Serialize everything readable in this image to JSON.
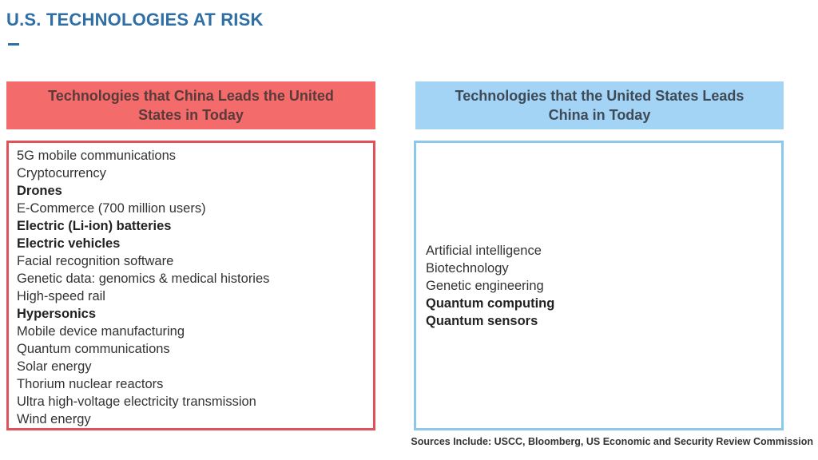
{
  "page": {
    "title": "U.S. TECHNOLOGIES AT RISK",
    "sources": "Sources Include: USCC, Bloomberg, US Economic and Security Review Commission"
  },
  "china_leads": {
    "header": "Technologies that China Leads the United States in Today",
    "items": [
      {
        "text": "5G mobile communications",
        "bold": false
      },
      {
        "text": "Cryptocurrency",
        "bold": false
      },
      {
        "text": "Drones",
        "bold": true
      },
      {
        "text": "E-Commerce (700 million users)",
        "bold": false
      },
      {
        "text": "Electric (Li-ion) batteries",
        "bold": true
      },
      {
        "text": "Electric vehicles",
        "bold": true
      },
      {
        "text": "Facial recognition software",
        "bold": false
      },
      {
        "text": "Genetic data: genomics & medical histories",
        "bold": false
      },
      {
        "text": "High-speed rail",
        "bold": false
      },
      {
        "text": "Hypersonics",
        "bold": true
      },
      {
        "text": "Mobile device manufacturing",
        "bold": false
      },
      {
        "text": "Quantum communications",
        "bold": false
      },
      {
        "text": "Solar energy",
        "bold": false
      },
      {
        "text": "Thorium nuclear reactors",
        "bold": false
      },
      {
        "text": "Ultra high-voltage electricity transmission",
        "bold": false
      },
      {
        "text": "Wind energy",
        "bold": false
      }
    ]
  },
  "us_leads": {
    "header": "Technologies that the United States Leads China in Today",
    "items": [
      {
        "text": "Artificial intelligence",
        "bold": false
      },
      {
        "text": "Biotechnology",
        "bold": false
      },
      {
        "text": "Genetic engineering",
        "bold": false
      },
      {
        "text": "Quantum computing",
        "bold": true
      },
      {
        "text": "Quantum sensors",
        "bold": true
      }
    ]
  },
  "colors": {
    "title": "#2f6fa5",
    "china_header_bg": "#f46b6b",
    "china_border": "#e0515a",
    "us_header_bg": "#a3d3f5",
    "us_border": "#8cc7ec"
  }
}
